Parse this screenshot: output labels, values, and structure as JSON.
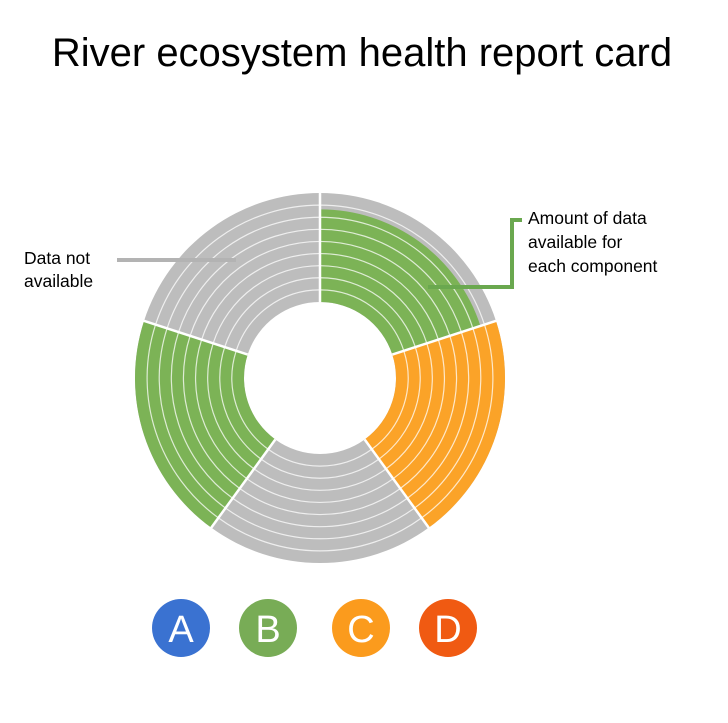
{
  "chart_data": {
    "type": "pie",
    "title": "River ecosystem health report card",
    "rings": 9,
    "segments": [
      {
        "component": "top-right",
        "fill_fraction": 0.85,
        "data_color": "#7cb356",
        "unavailable_color": "#bdbdbd"
      },
      {
        "component": "right",
        "fill_fraction": 1.0,
        "data_color": "#fba328",
        "unavailable_color": "#bdbdbd"
      },
      {
        "component": "bottom",
        "fill_fraction": 0.0,
        "data_color": "#bdbdbd",
        "unavailable_color": "#bdbdbd"
      },
      {
        "component": "left",
        "fill_fraction": 1.0,
        "data_color": "#7cb356",
        "unavailable_color": "#bdbdbd"
      },
      {
        "component": "top-left",
        "fill_fraction": 0.0,
        "data_color": "#bdbdbd",
        "unavailable_color": "#bdbdbd"
      }
    ],
    "annotations": {
      "data_not_available": [
        "Data not",
        "available"
      ],
      "amount_of_data": [
        "Amount of data",
        "available for",
        "each component"
      ]
    },
    "grades": [
      {
        "label": "A",
        "color": "#3a72d1"
      },
      {
        "label": "B",
        "color": "#78ac56"
      },
      {
        "label": "C",
        "color": "#fb9b1d"
      },
      {
        "label": "D",
        "color": "#f05a12"
      }
    ]
  },
  "colors": {
    "unavailable": "#bdbdbd",
    "callout_gray": "#b3b3b3",
    "callout_green": "#6aa84f"
  }
}
